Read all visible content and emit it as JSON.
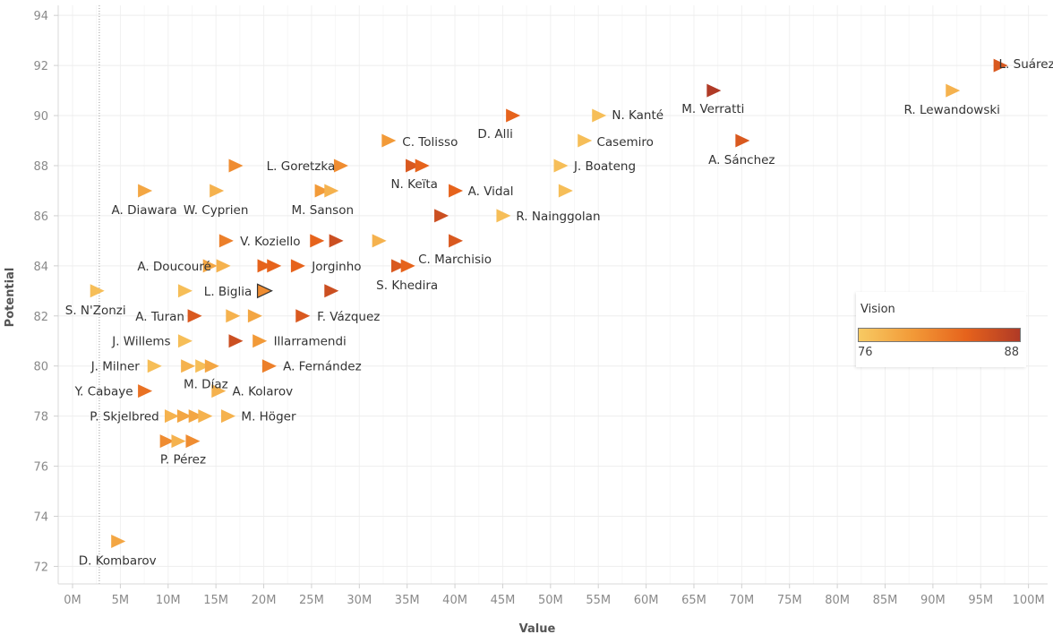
{
  "chart_data": {
    "type": "scatter",
    "xlabel": "Value",
    "ylabel": "Potential",
    "xlim": [
      -1.5,
      102
    ],
    "ylim": [
      71.3,
      94.4
    ],
    "x_unit_suffix": "M",
    "xticks": [
      0,
      5,
      10,
      15,
      20,
      25,
      30,
      35,
      40,
      45,
      50,
      55,
      60,
      65,
      70,
      75,
      80,
      85,
      90,
      95,
      100
    ],
    "xtick_labels": [
      "0M",
      "5M",
      "10M",
      "15M",
      "20M",
      "25M",
      "30M",
      "35M",
      "40M",
      "45M",
      "50M",
      "55M",
      "60M",
      "65M",
      "70M",
      "75M",
      "80M",
      "85M",
      "90M",
      "95M",
      "100M"
    ],
    "yticks": [
      72,
      74,
      76,
      78,
      80,
      82,
      84,
      86,
      88,
      90,
      92,
      94
    ],
    "ytick_labels": [
      "72",
      "74",
      "76",
      "78",
      "80",
      "82",
      "84",
      "86",
      "88",
      "90",
      "92",
      "94"
    ],
    "grid": true,
    "reference_line_x": 2.8,
    "marker": "right-pointing triangle",
    "color_legend": {
      "title": "Vision",
      "min": 76,
      "max": 88,
      "min_label": "76",
      "max_label": "88",
      "colors": [
        "#f7ca63",
        "#f29a38",
        "#e6631c",
        "#b03a26"
      ],
      "placement": "right"
    },
    "points": [
      {
        "label": "L. Suárez",
        "x": 97,
        "y": 92,
        "vision": 85
      },
      {
        "label": "R. Lewandowski",
        "x": 92,
        "y": 91,
        "vision": 78
      },
      {
        "label": "M. Verratti",
        "x": 67,
        "y": 91,
        "vision": 88
      },
      {
        "label": "N. Kanté",
        "x": 55,
        "y": 90,
        "vision": 77
      },
      {
        "label": "D. Alli",
        "x": 46,
        "y": 90,
        "vision": 84
      },
      {
        "label": "C. Tolisso",
        "x": 33,
        "y": 89,
        "vision": 80
      },
      {
        "label": "Casemiro",
        "x": 53.5,
        "y": 89,
        "vision": 77
      },
      {
        "label": "A. Sánchez",
        "x": 70,
        "y": 89,
        "vision": 85
      },
      {
        "label": "",
        "x": 17,
        "y": 88,
        "vision": 81
      },
      {
        "label": "L. Goretzka",
        "x": 28,
        "y": 88,
        "vision": 81
      },
      {
        "label": "",
        "x": 35.5,
        "y": 88,
        "vision": 85
      },
      {
        "label": "N. Keïta",
        "x": 36.5,
        "y": 88,
        "vision": 84
      },
      {
        "label": "J. Boateng",
        "x": 51,
        "y": 88,
        "vision": 77
      },
      {
        "label": "A. Diawara",
        "x": 7.5,
        "y": 87,
        "vision": 79
      },
      {
        "label": "W. Cyprien",
        "x": 15,
        "y": 87,
        "vision": 78
      },
      {
        "label": "",
        "x": 26,
        "y": 87,
        "vision": 80
      },
      {
        "label": "M. Sanson",
        "x": 27,
        "y": 87,
        "vision": 78
      },
      {
        "label": "A. Vidal",
        "x": 40,
        "y": 87,
        "vision": 84
      },
      {
        "label": "",
        "x": 51.5,
        "y": 87,
        "vision": 77
      },
      {
        "label": "",
        "x": 38.5,
        "y": 86,
        "vision": 86
      },
      {
        "label": "R. Nainggolan",
        "x": 45,
        "y": 86,
        "vision": 77
      },
      {
        "label": "V. Koziello",
        "x": 16,
        "y": 85,
        "vision": 82
      },
      {
        "label": "",
        "x": 25.5,
        "y": 85,
        "vision": 84
      },
      {
        "label": "",
        "x": 27.5,
        "y": 85,
        "vision": 86
      },
      {
        "label": "",
        "x": 32,
        "y": 85,
        "vision": 78
      },
      {
        "label": "C. Marchisio",
        "x": 40,
        "y": 85,
        "vision": 85
      },
      {
        "label": "",
        "x": 14.3,
        "y": 84,
        "vision": 79
      },
      {
        "label": "A. Doucouré",
        "x": 15.7,
        "y": 84,
        "vision": 78
      },
      {
        "label": "",
        "x": 20,
        "y": 84,
        "vision": 84
      },
      {
        "label": "",
        "x": 21,
        "y": 84,
        "vision": 84
      },
      {
        "label": "Jorginho",
        "x": 23.5,
        "y": 84,
        "vision": 84
      },
      {
        "label": "",
        "x": 34,
        "y": 84,
        "vision": 85
      },
      {
        "label": "S. Khedira",
        "x": 35,
        "y": 84,
        "vision": 84
      },
      {
        "label": "S. N'Zonzi",
        "x": 2.5,
        "y": 83,
        "vision": 77
      },
      {
        "label": "",
        "x": 11.7,
        "y": 83,
        "vision": 77
      },
      {
        "label": "L. Biglia",
        "x": 20,
        "y": 83,
        "vision": 81,
        "highlighted": true
      },
      {
        "label": "",
        "x": 27,
        "y": 83,
        "vision": 86
      },
      {
        "label": "A. Turan",
        "x": 12.7,
        "y": 82,
        "vision": 85
      },
      {
        "label": "",
        "x": 16.7,
        "y": 82,
        "vision": 78
      },
      {
        "label": "",
        "x": 19,
        "y": 82,
        "vision": 79
      },
      {
        "label": "F. Vázquez",
        "x": 24,
        "y": 82,
        "vision": 85
      },
      {
        "label": "J. Willems",
        "x": 11.7,
        "y": 81,
        "vision": 77
      },
      {
        "label": "",
        "x": 17,
        "y": 81,
        "vision": 86
      },
      {
        "label": "Illarramendi",
        "x": 19.5,
        "y": 81,
        "vision": 80
      },
      {
        "label": "J. Milner",
        "x": 8.5,
        "y": 80,
        "vision": 77
      },
      {
        "label": "",
        "x": 12,
        "y": 80,
        "vision": 78
      },
      {
        "label": "",
        "x": 13.5,
        "y": 80,
        "vision": 77
      },
      {
        "label": "M. Díaz",
        "x": 14.5,
        "y": 80,
        "vision": 79
      },
      {
        "label": "A. Fernández",
        "x": 20.5,
        "y": 80,
        "vision": 82
      },
      {
        "label": "Y. Cabaye",
        "x": 7.5,
        "y": 79,
        "vision": 83
      },
      {
        "label": "A. Kolarov",
        "x": 15.2,
        "y": 79,
        "vision": 78
      },
      {
        "label": "P. Skjelbred",
        "x": 10.3,
        "y": 78,
        "vision": 78
      },
      {
        "label": "",
        "x": 11.6,
        "y": 78,
        "vision": 79
      },
      {
        "label": "",
        "x": 12.8,
        "y": 78,
        "vision": 79
      },
      {
        "label": "",
        "x": 13.8,
        "y": 78,
        "vision": 78
      },
      {
        "label": "M. Höger",
        "x": 16.2,
        "y": 78,
        "vision": 78
      },
      {
        "label": "",
        "x": 9.8,
        "y": 77,
        "vision": 81
      },
      {
        "label": "",
        "x": 11,
        "y": 77,
        "vision": 78
      },
      {
        "label": "P. Pérez",
        "x": 12.5,
        "y": 77,
        "vision": 81
      },
      {
        "label": "D. Kombarov",
        "x": 4.7,
        "y": 73,
        "vision": 79
      }
    ]
  }
}
